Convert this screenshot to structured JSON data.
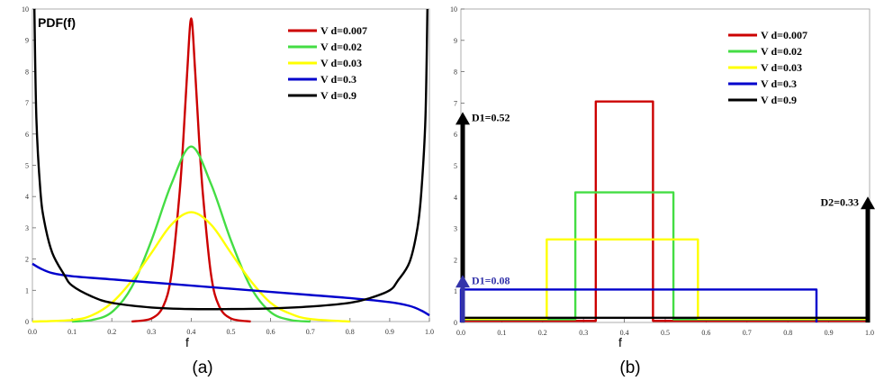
{
  "chart_data": [
    {
      "type": "line",
      "panel": "a",
      "caption": "(a)",
      "ylabel": "PDF(f)",
      "xlabel": "f",
      "xlim": [
        0,
        1
      ],
      "ylim": [
        0,
        10
      ],
      "xticks": [
        "0.0",
        "0.1",
        "0.2",
        "0.3",
        "0.4",
        "0.5",
        "0.6",
        "0.7",
        "0.8",
        "0.9",
        "1.0"
      ],
      "yticks": [
        "0",
        "1",
        "2",
        "3",
        "4",
        "5",
        "6",
        "7",
        "8",
        "9",
        "10"
      ],
      "legend_position": "top-right",
      "series": [
        {
          "name": "V d=0.007",
          "color": "#cc0000",
          "x": [
            0.25,
            0.3,
            0.33,
            0.35,
            0.37,
            0.38,
            0.39,
            0.4,
            0.41,
            0.42,
            0.43,
            0.45,
            0.47,
            0.5,
            0.55
          ],
          "y": [
            0,
            0.1,
            0.5,
            1.5,
            4.0,
            5.8,
            8.0,
            9.7,
            8.0,
            5.8,
            4.0,
            1.5,
            0.5,
            0.1,
            0
          ]
        },
        {
          "name": "V d=0.02",
          "color": "#44dd44",
          "x": [
            0.1,
            0.15,
            0.2,
            0.25,
            0.3,
            0.35,
            0.4,
            0.45,
            0.5,
            0.55,
            0.6,
            0.65,
            0.7
          ],
          "y": [
            0,
            0.05,
            0.3,
            1.1,
            2.6,
            4.4,
            5.6,
            4.4,
            2.6,
            1.1,
            0.3,
            0.05,
            0
          ]
        },
        {
          "name": "V d=0.03",
          "color": "#ffff00",
          "x": [
            0,
            0.1,
            0.15,
            0.2,
            0.25,
            0.3,
            0.35,
            0.4,
            0.45,
            0.5,
            0.55,
            0.6,
            0.65,
            0.7,
            0.8
          ],
          "y": [
            0,
            0.05,
            0.2,
            0.6,
            1.3,
            2.2,
            3.1,
            3.5,
            3.1,
            2.2,
            1.3,
            0.6,
            0.25,
            0.08,
            0
          ]
        },
        {
          "name": "V d=0.3",
          "color": "#0000cc",
          "x": [
            0,
            0.02,
            0.05,
            0.1,
            0.2,
            0.3,
            0.4,
            0.5,
            0.6,
            0.7,
            0.8,
            0.9,
            0.95,
            0.98,
            1.0
          ],
          "y": [
            1.85,
            1.7,
            1.55,
            1.45,
            1.35,
            1.25,
            1.15,
            1.05,
            0.95,
            0.85,
            0.75,
            0.62,
            0.5,
            0.35,
            0.2
          ]
        },
        {
          "name": "V d=0.9",
          "color": "#000000",
          "x": [
            0.005,
            0.01,
            0.02,
            0.03,
            0.05,
            0.08,
            0.1,
            0.15,
            0.2,
            0.3,
            0.4,
            0.5,
            0.6,
            0.7,
            0.8,
            0.85,
            0.9,
            0.92,
            0.95,
            0.97,
            0.98,
            0.99,
            0.995
          ],
          "y": [
            10,
            6.5,
            4.2,
            3.2,
            2.2,
            1.5,
            1.15,
            0.8,
            0.6,
            0.45,
            0.4,
            0.4,
            0.42,
            0.48,
            0.6,
            0.75,
            1.0,
            1.3,
            1.9,
            3.0,
            4.2,
            6.5,
            10
          ]
        }
      ]
    },
    {
      "type": "line",
      "panel": "b",
      "caption": "(b)",
      "xlabel": "f",
      "xlim": [
        0,
        1
      ],
      "ylim": [
        0,
        10
      ],
      "xticks": [
        "0.0",
        "0.1",
        "0.2",
        "0.3",
        "0.4",
        "0.5",
        "0.6",
        "0.7",
        "0.8",
        "0.9",
        "1.0"
      ],
      "yticks": [
        "0",
        "1",
        "2",
        "3",
        "4",
        "5",
        "6",
        "7",
        "8",
        "9",
        "10"
      ],
      "legend_position": "top-right",
      "series": [
        {
          "name": "V d=0.007",
          "color": "#cc0000",
          "x": [
            0,
            0.33,
            0.33,
            0.47,
            0.47,
            1.0
          ],
          "y": [
            0.05,
            0.05,
            7.05,
            7.05,
            0.05,
            0.05
          ]
        },
        {
          "name": "V d=0.02",
          "color": "#44dd44",
          "x": [
            0,
            0.28,
            0.28,
            0.52,
            0.52,
            1.0
          ],
          "y": [
            0.1,
            0.1,
            4.15,
            4.15,
            0.1,
            0.1
          ]
        },
        {
          "name": "V d=0.03",
          "color": "#ffff00",
          "x": [
            0,
            0.21,
            0.21,
            0.58,
            0.58,
            1.0
          ],
          "y": [
            0.12,
            0.12,
            2.65,
            2.65,
            0.12,
            0.12
          ]
        },
        {
          "name": "V d=0.3",
          "color": "#0000cc",
          "x": [
            0,
            0,
            0.87,
            0.87
          ],
          "y": [
            0,
            1.05,
            1.05,
            0
          ]
        },
        {
          "name": "V d=0.9",
          "color": "#000000",
          "x": [
            0,
            1.0
          ],
          "y": [
            0.15,
            0.15
          ]
        }
      ],
      "arrows": [
        {
          "label": "D1=0.52",
          "color": "#000000",
          "x": 0.0,
          "y": 6.6,
          "label_side": "right"
        },
        {
          "label": "D1=0.08",
          "color": "#3333aa",
          "x": 0.0,
          "y": 1.4,
          "label_side": "right"
        },
        {
          "label": "D2=0.33",
          "color": "#000000",
          "x": 1.0,
          "y": 3.9,
          "label_side": "left"
        }
      ]
    }
  ]
}
